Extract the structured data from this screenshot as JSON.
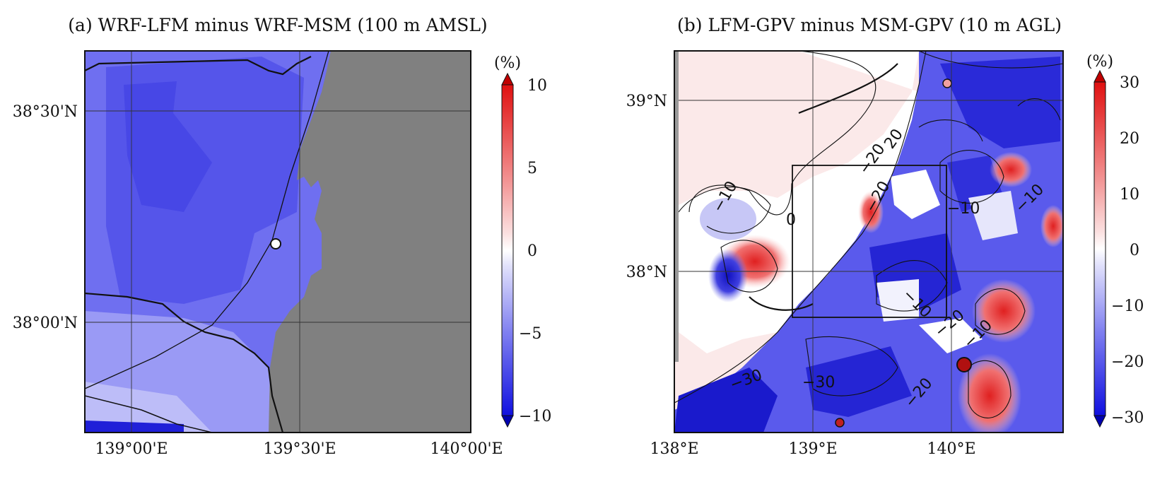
{
  "panel_a": {
    "title": "(a) WRF-LFM minus WRF-MSM (100 m AMSL)",
    "lat_labels": [
      "38°30'N",
      "38°00'N"
    ],
    "lon_labels": [
      "139°00'E",
      "139°30'E",
      "140°00'E"
    ],
    "colorbar": {
      "unit": "(%)",
      "ticks": [
        "10",
        "5",
        "0",
        "−5",
        "−10"
      ],
      "min": -10,
      "max": 10
    },
    "land_color": "#808080",
    "point_marker": "white-circle-site"
  },
  "panel_b": {
    "title": "(b) LFM-GPV minus MSM-GPV (10 m AGL)",
    "lat_labels": [
      "39°N",
      "38°N"
    ],
    "lon_labels": [
      "138°E",
      "139°E",
      "140°E"
    ],
    "colorbar": {
      "unit": "(%)",
      "ticks": [
        "30",
        "20",
        "10",
        "0",
        "−10",
        "−20",
        "−30"
      ],
      "min": -30,
      "max": 30
    },
    "contour_labels": [
      "−10",
      "0",
      "20",
      "−20",
      "−10",
      "−10",
      "−10",
      "−20",
      "−10",
      "−30",
      "−20",
      "−30",
      "−20"
    ]
  },
  "colors": {
    "positive": "#e8141a",
    "neutral": "#ffffff",
    "negative": "#1414e6"
  }
}
